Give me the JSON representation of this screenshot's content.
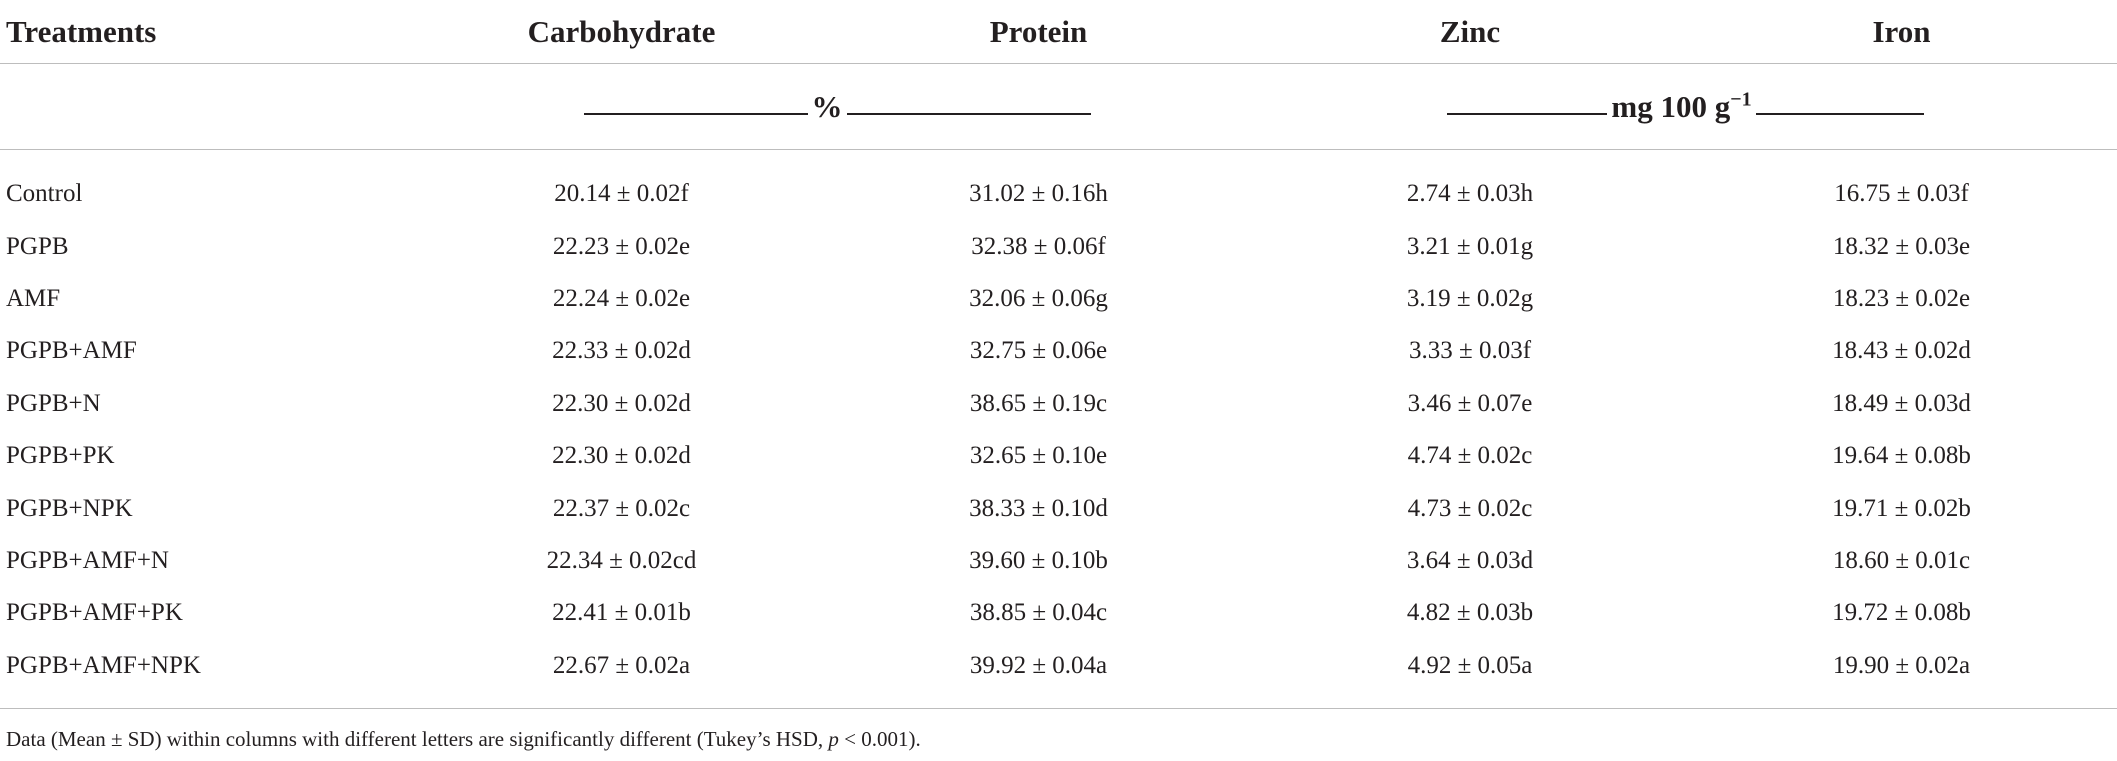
{
  "table": {
    "headers": [
      "Treatments",
      "Carbohydrate",
      "Protein",
      "Zinc",
      "Iron"
    ],
    "units": {
      "percent_label": "%",
      "mass_label_base": "mg 100 g",
      "mass_label_exp": "−1"
    },
    "rows": [
      {
        "treatment": "Control",
        "carbohydrate": "20.14 ± 0.02f",
        "protein": "31.02 ± 0.16h",
        "zinc": "2.74 ± 0.03h",
        "iron": "16.75 ± 0.03f"
      },
      {
        "treatment": "PGPB",
        "carbohydrate": "22.23 ± 0.02e",
        "protein": "32.38 ± 0.06f",
        "zinc": "3.21 ± 0.01g",
        "iron": "18.32 ± 0.03e"
      },
      {
        "treatment": "AMF",
        "carbohydrate": "22.24 ± 0.02e",
        "protein": "32.06 ± 0.06g",
        "zinc": "3.19 ± 0.02g",
        "iron": "18.23 ± 0.02e"
      },
      {
        "treatment": "PGPB+AMF",
        "carbohydrate": "22.33 ± 0.02d",
        "protein": "32.75 ± 0.06e",
        "zinc": "3.33 ± 0.03f",
        "iron": "18.43 ± 0.02d"
      },
      {
        "treatment": "PGPB+N",
        "carbohydrate": "22.30 ± 0.02d",
        "protein": "38.65 ± 0.19c",
        "zinc": "3.46 ± 0.07e",
        "iron": "18.49 ± 0.03d"
      },
      {
        "treatment": "PGPB+PK",
        "carbohydrate": "22.30 ± 0.02d",
        "protein": "32.65 ± 0.10e",
        "zinc": "4.74 ± 0.02c",
        "iron": "19.64 ± 0.08b"
      },
      {
        "treatment": "PGPB+NPK",
        "carbohydrate": "22.37 ± 0.02c",
        "protein": "38.33 ± 0.10d",
        "zinc": "4.73 ± 0.02c",
        "iron": "19.71 ± 0.02b"
      },
      {
        "treatment": "PGPB+AMF+N",
        "carbohydrate": "22.34 ± 0.02cd",
        "protein": "39.60 ± 0.10b",
        "zinc": "3.64 ± 0.03d",
        "iron": "18.60 ± 0.01c"
      },
      {
        "treatment": "PGPB+AMF+PK",
        "carbohydrate": "22.41 ± 0.01b",
        "protein": "38.85 ± 0.04c",
        "zinc": "4.82 ± 0.03b",
        "iron": "19.72 ± 0.08b"
      },
      {
        "treatment": "PGPB+AMF+NPK",
        "carbohydrate": "22.67 ± 0.02a",
        "protein": "39.92 ± 0.04a",
        "zinc": "4.92 ± 0.05a",
        "iron": "19.90 ± 0.02a"
      }
    ]
  },
  "footnote": {
    "text_before": "Data (Mean ± SD) within columns with different letters are significantly different (Tukey’s HSD, ",
    "p_symbol": "p",
    "text_after": " < 0.001)."
  }
}
